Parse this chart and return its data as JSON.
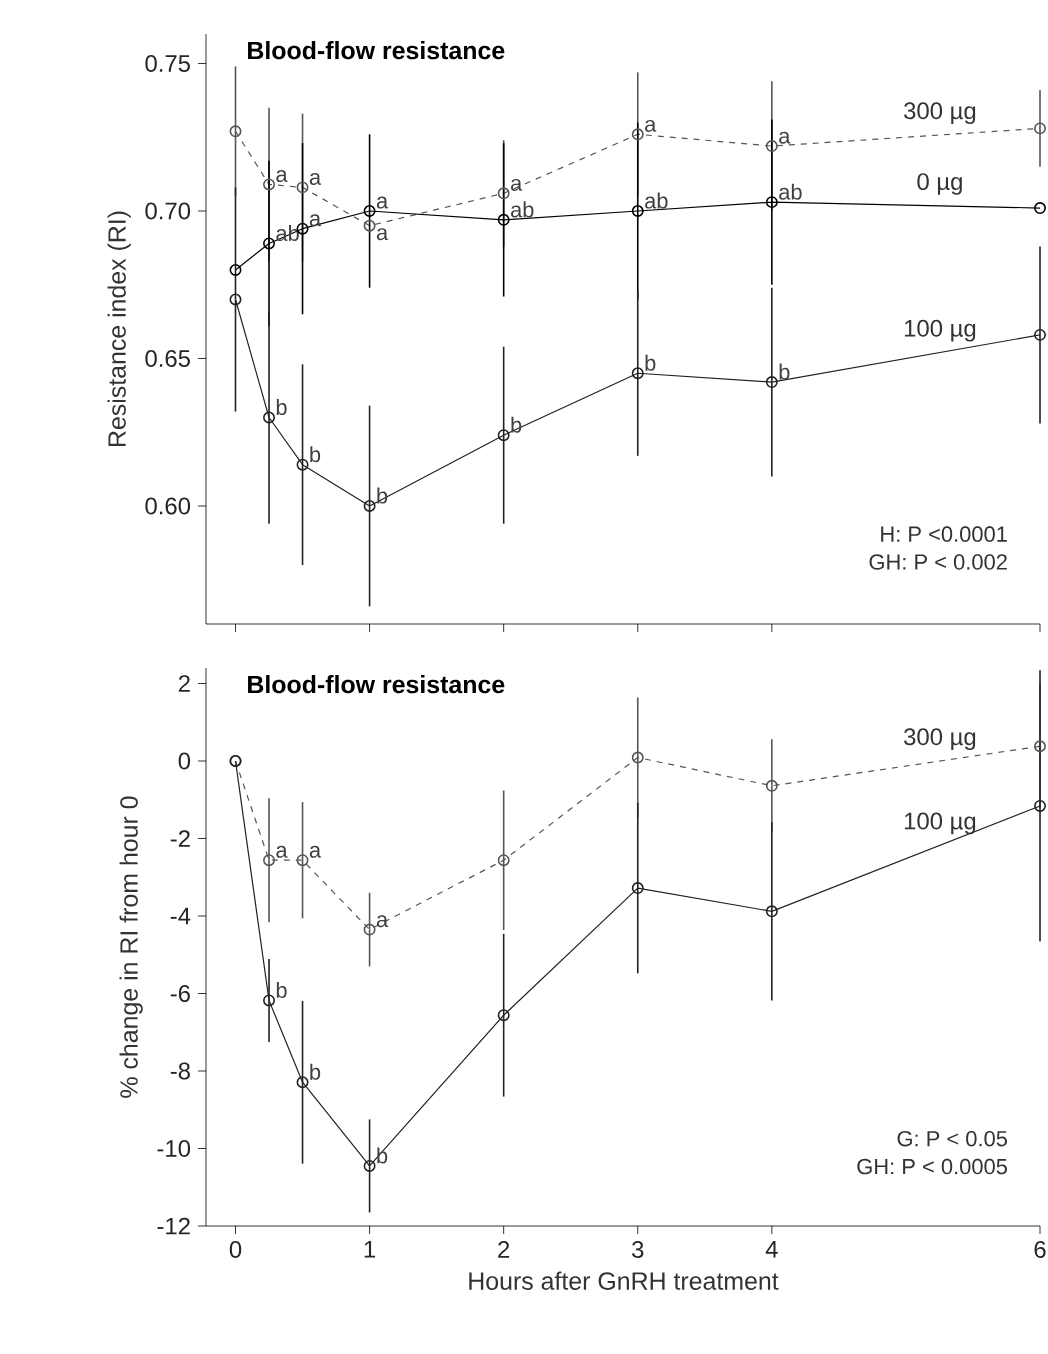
{
  "chart_data": [
    {
      "type": "line",
      "title": "Blood-flow resistance",
      "ylabel": "Resistance index (RI)",
      "xlim": [
        -0.22,
        6
      ],
      "xticks": [
        0,
        1,
        2,
        3,
        4,
        6
      ],
      "ylim": [
        0.56,
        0.76
      ],
      "yticks": [
        {
          "value": 0.6,
          "label": "0.60"
        },
        0.65,
        {
          "value": 0.7,
          "label": "0.70"
        },
        0.75
      ],
      "tick_labels": "y",
      "marker": "circle",
      "series": [
        {
          "name": "300 µg",
          "color": "#555555",
          "line_style": "dashed",
          "x": [
            0,
            0.25,
            0.5,
            1,
            2,
            3,
            4,
            6
          ],
          "values": [
            0.727,
            0.709,
            0.708,
            0.695,
            0.706,
            0.726,
            0.722,
            0.728
          ],
          "errors": [
            0.022,
            0.026,
            0.025,
            null,
            0.018,
            0.021,
            0.022,
            0.013
          ]
        },
        {
          "name": "0 µg",
          "color": "#000000",
          "line_style": "solid",
          "x": [
            0,
            0.25,
            0.5,
            1,
            2,
            3,
            4,
            6
          ],
          "values": [
            0.68,
            0.689,
            0.694,
            0.7,
            0.697,
            0.7,
            0.703,
            0.701
          ],
          "errors": [
            null,
            0.028,
            0.029,
            0.026,
            0.026,
            0.03,
            0.028,
            null
          ]
        },
        {
          "name": "100 µg",
          "color": "#222222",
          "line_style": "solid",
          "x": [
            0,
            0.25,
            0.5,
            1,
            2,
            3,
            4,
            6
          ],
          "values": [
            0.67,
            0.63,
            0.614,
            0.6,
            0.624,
            0.645,
            0.642,
            0.658
          ],
          "errors": [
            0.038,
            0.036,
            0.034,
            0.034,
            0.03,
            0.028,
            0.032,
            0.03
          ]
        }
      ],
      "annotations": [
        {
          "text": "a",
          "x": 0.25,
          "y": 0.709
        },
        {
          "text": "a",
          "x": 0.5,
          "y": 0.708
        },
        {
          "text": "a",
          "x": 1,
          "y": 0.7
        },
        {
          "text": "a",
          "x": 2,
          "y": 0.706
        },
        {
          "text": "a",
          "x": 3,
          "y": 0.726
        },
        {
          "text": "a",
          "x": 4,
          "y": 0.722
        },
        {
          "text": "ab",
          "x": 0.25,
          "y": 0.689
        },
        {
          "text": "a",
          "x": 0.5,
          "y": 0.694
        },
        {
          "text": "a",
          "x": 1,
          "y": 0.695
        },
        {
          "text": "ab",
          "x": 2,
          "y": 0.697
        },
        {
          "text": "ab",
          "x": 3,
          "y": 0.7
        },
        {
          "text": "ab",
          "x": 4,
          "y": 0.703
        },
        {
          "text": "b",
          "x": 0.25,
          "y": 0.63
        },
        {
          "text": "b",
          "x": 0.5,
          "y": 0.614
        },
        {
          "text": "b",
          "x": 1,
          "y": 0.6
        },
        {
          "text": "b",
          "x": 2,
          "y": 0.624
        },
        {
          "text": "b",
          "x": 3,
          "y": 0.645
        },
        {
          "text": "b",
          "x": 4,
          "y": 0.642
        },
        "H: P <0.0001",
        "GH: P < 0.002"
      ]
    },
    {
      "type": "line",
      "title": "Blood-flow resistance",
      "ylabel": "% change in RI from hour 0",
      "xlabel": "Hours after GnRH treatment",
      "xlim": [
        -0.22,
        6
      ],
      "xticks": [
        0,
        1,
        2,
        3,
        4,
        6
      ],
      "ylim": [
        -12,
        2.4
      ],
      "yticks": [
        -12,
        -10,
        -8,
        -6,
        -4,
        -2,
        0,
        2
      ],
      "marker": "circle",
      "series": [
        {
          "name": "300 µg",
          "color": "#555555",
          "line_style": "dashed",
          "x": [
            0,
            0.25,
            0.5,
            1,
            2,
            3,
            4,
            6
          ],
          "values": [
            0,
            -2.56,
            -2.56,
            -4.35,
            -2.56,
            0.09,
            -0.64,
            0.38
          ],
          "errors": [
            null,
            1.6,
            1.5,
            0.95,
            1.8,
            1.55,
            1.2,
            1.6
          ]
        },
        {
          "name": "100 µg",
          "color": "#222222",
          "line_style": "solid",
          "x": [
            0,
            0.25,
            0.5,
            1,
            2,
            3,
            4,
            6
          ],
          "values": [
            0,
            -6.18,
            -8.29,
            -10.45,
            -6.56,
            -3.28,
            -3.88,
            -1.16
          ],
          "errors": [
            null,
            1.07,
            2.1,
            1.2,
            2.1,
            2.2,
            2.3,
            3.5
          ]
        }
      ],
      "annotations": [
        {
          "text": "a",
          "x": 0.25,
          "y": -2.56
        },
        {
          "text": "a",
          "x": 0.5,
          "y": -2.56
        },
        {
          "text": "a",
          "x": 1,
          "y": -4.35
        },
        {
          "text": "b",
          "x": 0.25,
          "y": -6.18
        },
        {
          "text": "b",
          "x": 0.5,
          "y": -8.29
        },
        {
          "text": "b",
          "x": 1,
          "y": -10.45
        },
        "G: P < 0.05",
        "GH: P < 0.0005"
      ]
    }
  ]
}
